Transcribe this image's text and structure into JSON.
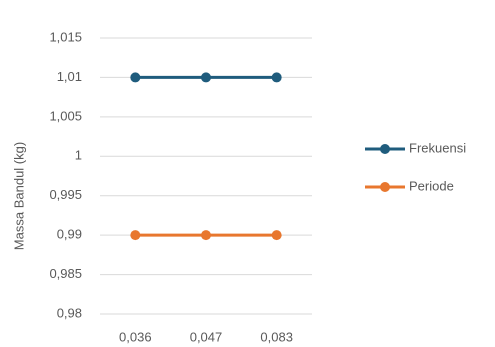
{
  "chart_data": {
    "type": "line",
    "y_label": "Massa Bandul (kg)",
    "categories": [
      "0,036",
      "0,047",
      "0,083"
    ],
    "series": [
      {
        "name": "Frekuensi",
        "color": "#1f5c7d",
        "values": [
          1.01,
          1.01,
          1.01
        ]
      },
      {
        "name": "Periode",
        "color": "#e8772e",
        "values": [
          0.99,
          0.99,
          0.99
        ]
      }
    ],
    "ylim": [
      0.98,
      1.015
    ],
    "yticks": [
      {
        "value": 0.98,
        "label": "0,98"
      },
      {
        "value": 0.985,
        "label": "0,985"
      },
      {
        "value": 0.99,
        "label": "0,99"
      },
      {
        "value": 0.995,
        "label": "0,995"
      },
      1,
      {
        "value": 1.005,
        "label": "1,005"
      },
      {
        "value": 1.01,
        "label": "1,01"
      },
      {
        "value": 1.015,
        "label": "1,015"
      }
    ],
    "grid": true,
    "legend": "right"
  }
}
